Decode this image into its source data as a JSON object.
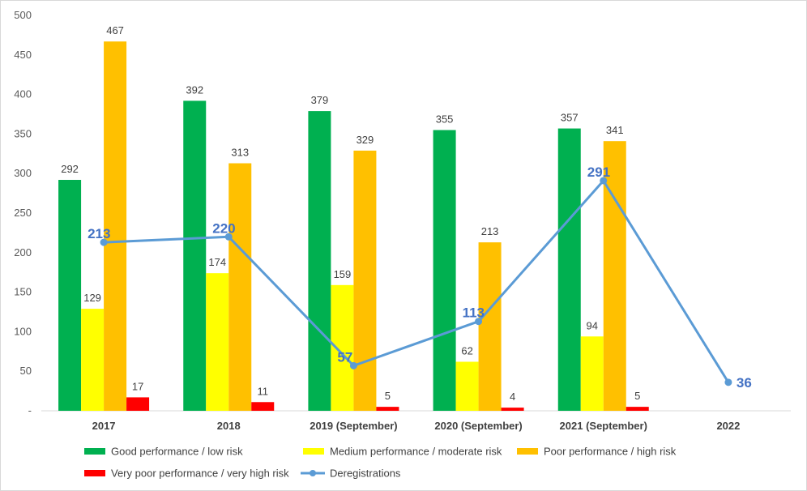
{
  "chart_data": {
    "type": "bar",
    "title": "",
    "xlabel": "",
    "ylabel": "",
    "categories": [
      "2017",
      "2018",
      "2019 (September)",
      "2020 (September)",
      "2021 (September)",
      "2022"
    ],
    "ylim": [
      0,
      500
    ],
    "yticks": [
      "-",
      "50",
      "100",
      "150",
      "200",
      "250",
      "300",
      "350",
      "400",
      "450",
      "500"
    ],
    "grid": false,
    "legend_position": "bottom",
    "series": [
      {
        "name": "Good performance / low risk",
        "kind": "bar",
        "color": "#00b050",
        "values": [
          292,
          392,
          379,
          355,
          357,
          null
        ]
      },
      {
        "name": "Medium performance / moderate risk",
        "kind": "bar",
        "color": "#ffff00",
        "values": [
          129,
          174,
          159,
          62,
          94,
          null
        ]
      },
      {
        "name": "Poor performance / high risk",
        "kind": "bar",
        "color": "#ffc000",
        "values": [
          467,
          313,
          329,
          213,
          341,
          null
        ]
      },
      {
        "name": "Very poor performance / very high risk",
        "kind": "bar",
        "color": "#ff0000",
        "values": [
          17,
          11,
          5,
          4,
          5,
          null
        ]
      },
      {
        "name": "Deregistrations",
        "kind": "line",
        "color": "#5b9bd5",
        "label_color": "#4472c4",
        "values": [
          213,
          220,
          57,
          113,
          291,
          36
        ]
      }
    ]
  }
}
